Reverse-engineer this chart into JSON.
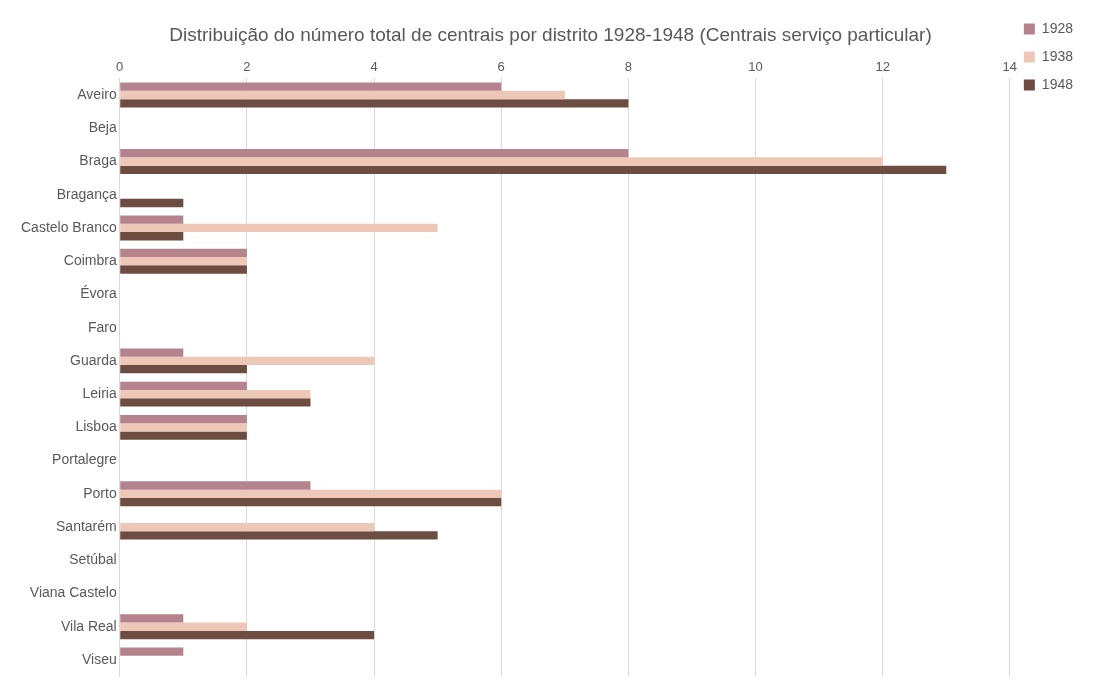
{
  "chart_data": {
    "type": "bar",
    "orientation": "horizontal",
    "title": "Distribuição do número total de centrais por distrito 1928-1948 (Centrais serviço particular)",
    "categories": [
      "Aveiro",
      "Beja",
      "Braga",
      "Bragança",
      "Castelo Branco",
      "Coimbra",
      "Évora",
      "Faro",
      "Guarda",
      "Leiria",
      "Lisboa",
      "Portalegre",
      "Porto",
      "Santarém",
      "Setúbal",
      "Viana Castelo",
      "Vila Real",
      "Viseu"
    ],
    "series": [
      {
        "name": "1928",
        "color": "#b5838d",
        "values": [
          6,
          0,
          8,
          0,
          1,
          2,
          0,
          0,
          1,
          2,
          2,
          0,
          3,
          0,
          0,
          0,
          1,
          1
        ]
      },
      {
        "name": "1938",
        "color": "#edc8b8",
        "values": [
          7,
          0,
          12,
          0,
          5,
          2,
          0,
          0,
          4,
          3,
          2,
          0,
          6,
          4,
          0,
          0,
          2,
          0
        ]
      },
      {
        "name": "1948",
        "color": "#6d4c41",
        "values": [
          8,
          0,
          13,
          1,
          1,
          2,
          0,
          0,
          2,
          3,
          2,
          0,
          6,
          5,
          0,
          0,
          4,
          0
        ]
      }
    ],
    "xlim": [
      0,
      14
    ],
    "xticks": [
      0,
      2,
      4,
      6,
      8,
      10,
      12,
      14
    ],
    "grid": "x",
    "legend": "top right"
  }
}
